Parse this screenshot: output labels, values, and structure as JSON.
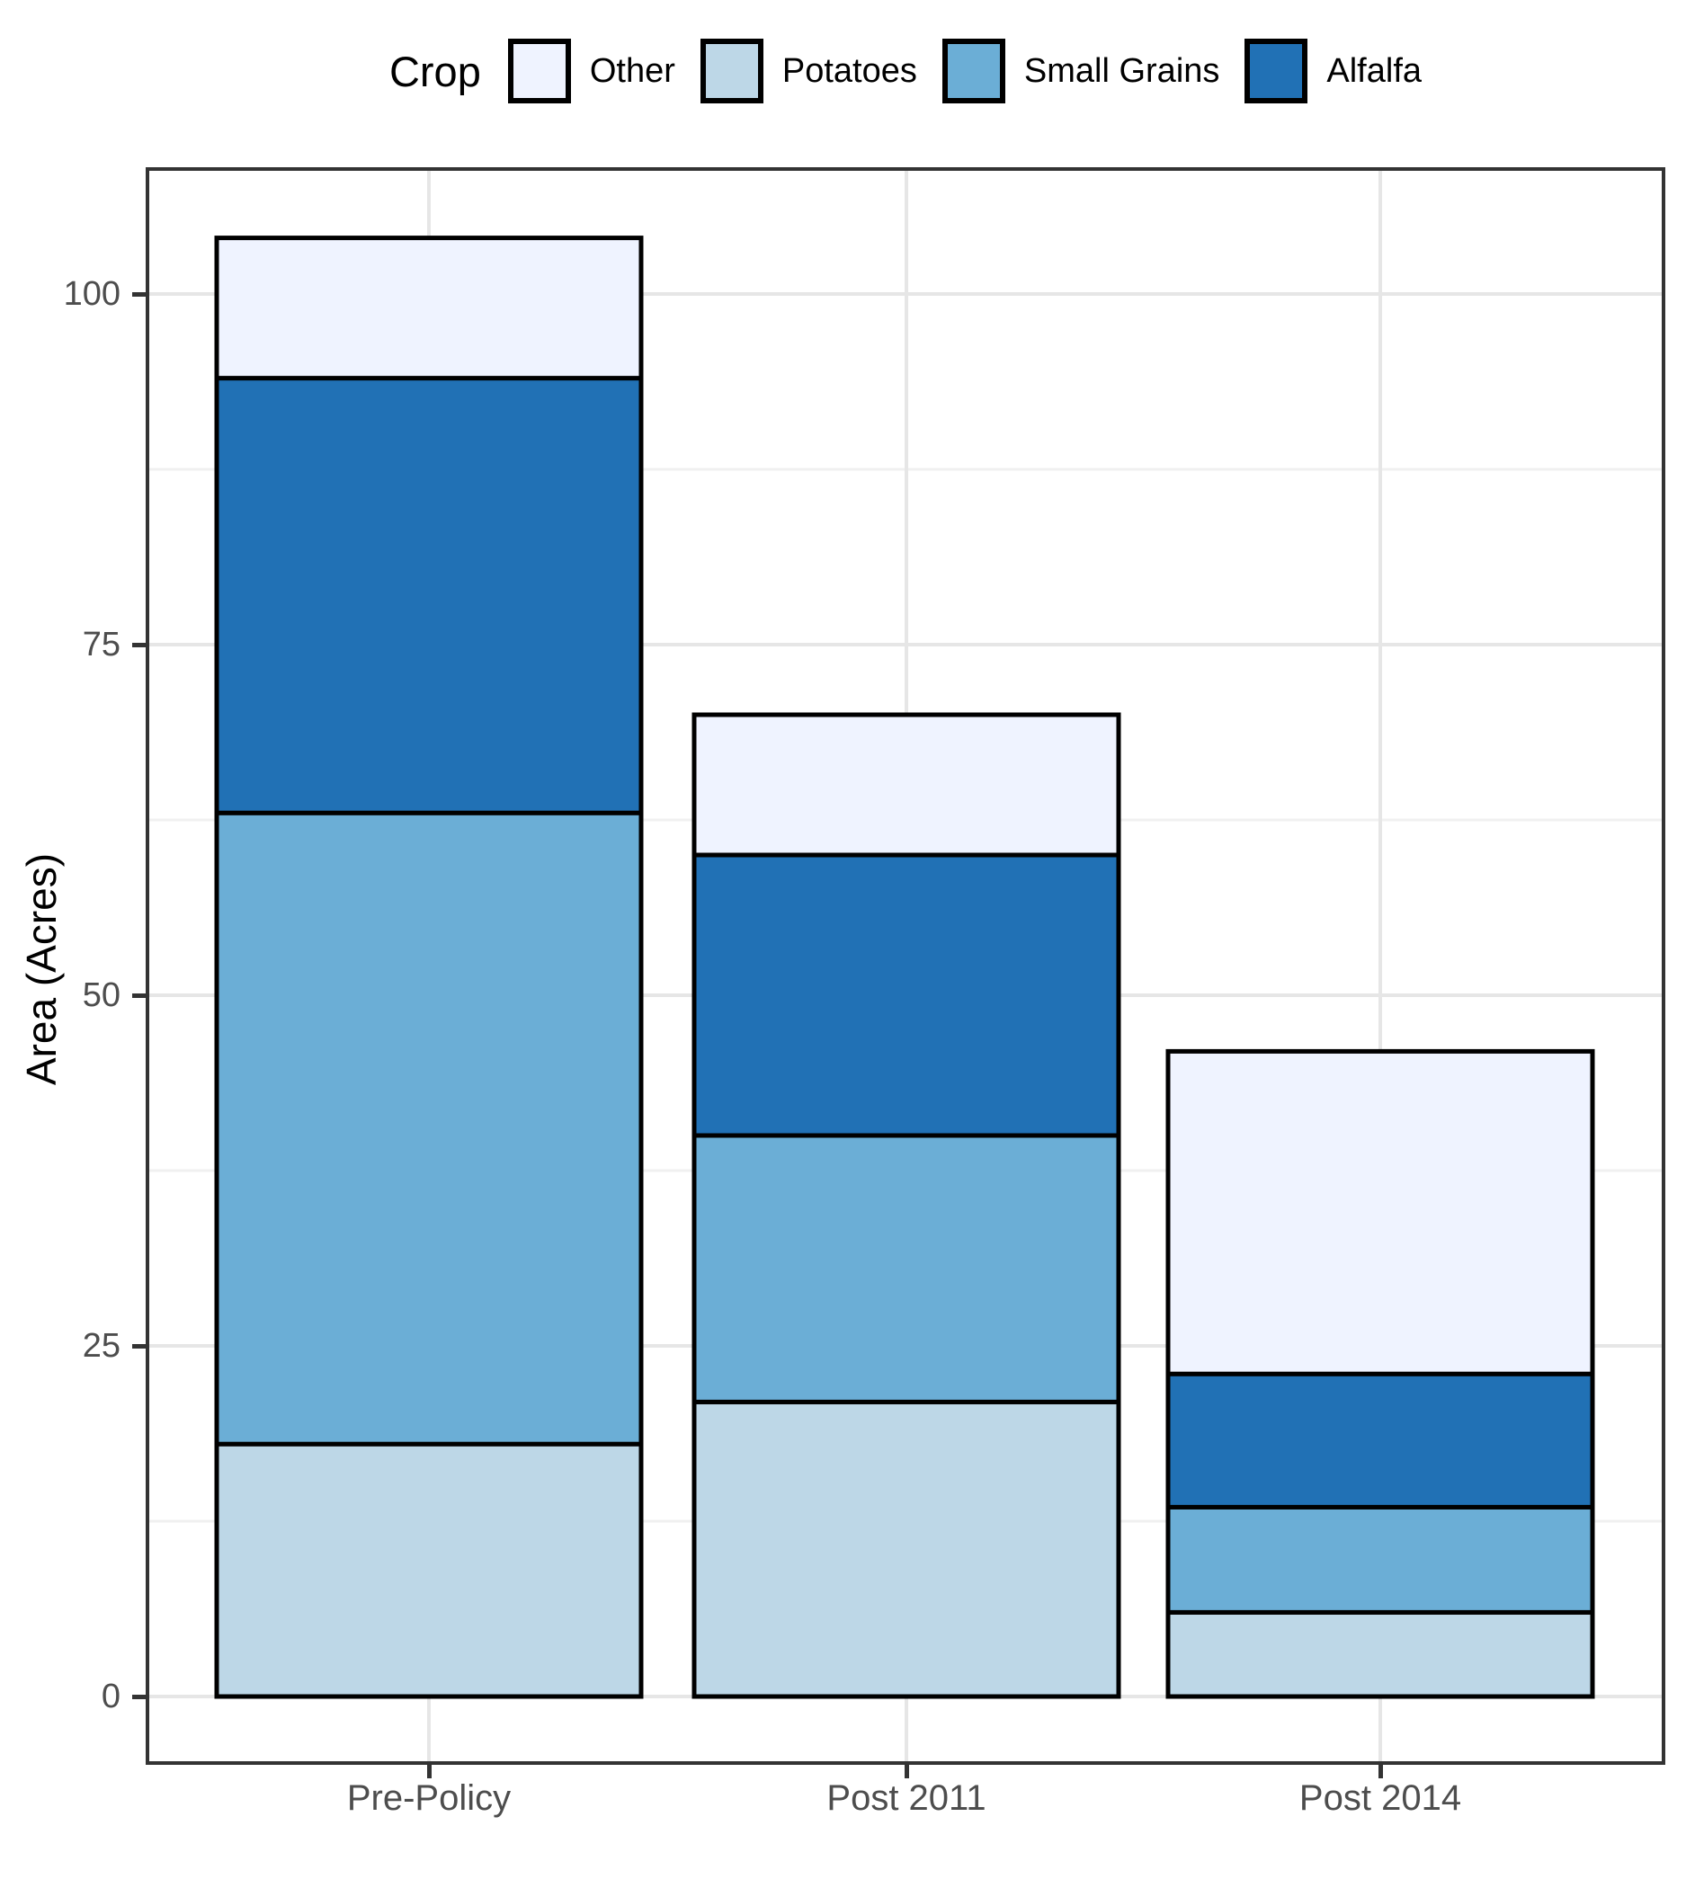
{
  "chart_data": {
    "type": "bar",
    "stacked": true,
    "legend_title": "Crop",
    "legend_position": "top",
    "legend_order": [
      "Other",
      "Potatoes",
      "Small Grains",
      "Alfalfa"
    ],
    "categories": [
      "Pre-Policy",
      "Post 2011",
      "Post 2014"
    ],
    "series": [
      {
        "name": "Potatoes",
        "color": "#bdd7e7",
        "values": [
          18,
          21,
          6
        ]
      },
      {
        "name": "Small Grains",
        "color": "#6baed6",
        "values": [
          45,
          19,
          7.5
        ]
      },
      {
        "name": "Alfalfa",
        "color": "#2171b5",
        "values": [
          31,
          20,
          9.5
        ]
      },
      {
        "name": "Other",
        "color": "#eff3ff",
        "values": [
          10,
          10,
          23
        ]
      }
    ],
    "totals": [
      104,
      70,
      46
    ],
    "xlabel": "",
    "ylabel": "Area (Acres)",
    "yticks": [
      0,
      25,
      50,
      75,
      100
    ],
    "ytick_labels": [
      "0",
      "25",
      "50",
      "75",
      "100"
    ],
    "minor_gridlines": [
      12.5,
      37.5,
      62.5,
      87.5
    ],
    "ylim": [
      -5.2,
      109
    ],
    "grid": "horizontal major+minor, vertical major at categories",
    "bar_outline_color": "#000000",
    "colors": {
      "panel_border": "#333333",
      "grid_major": "#e6e6e6",
      "grid_minor": "#f0f0f0",
      "tick_mark": "#333333",
      "tick_label": "#4d4d4d",
      "background": "#ffffff"
    }
  }
}
